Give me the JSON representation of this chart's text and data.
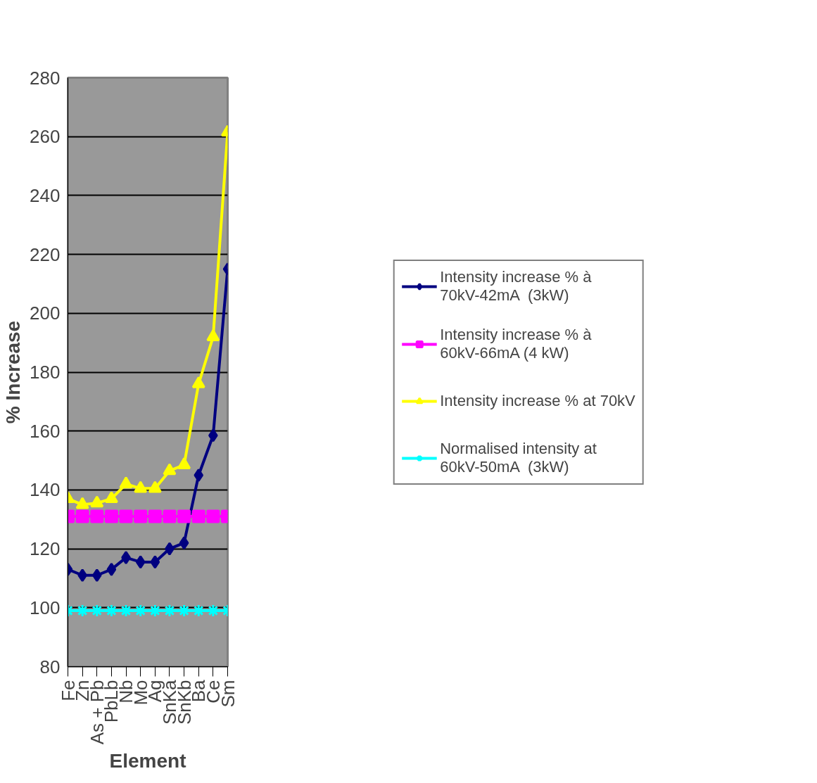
{
  "chart_data": {
    "type": "line",
    "xlabel": "Element",
    "ylabel": "% Increase",
    "categories": [
      "Fe",
      "Zn",
      "As + Pb",
      "PbLb",
      "Nb",
      "Mo",
      "Ag",
      "SnKa",
      "SnKb",
      "Ba",
      "Ce",
      "Sm"
    ],
    "ylim": [
      80,
      280
    ],
    "yticks": [
      80,
      100,
      120,
      140,
      160,
      180,
      200,
      220,
      240,
      260,
      280
    ],
    "grid": "y",
    "legend": "right",
    "series": [
      {
        "name": "Intensity increase % à 70kV-42mA  (3kW)",
        "color": "#000080",
        "marker": "diamond",
        "values": [
          113,
          111,
          111,
          113,
          117,
          115.5,
          115.5,
          120,
          122,
          145,
          158.5,
          215
        ]
      },
      {
        "name": "Intensity increase % à 60kV-66mA (4 kW)",
        "color": "#ff00ff",
        "marker": "square",
        "values": [
          131,
          131,
          131,
          131,
          131,
          131,
          131,
          131,
          131,
          131,
          131,
          131
        ]
      },
      {
        "name": "Intensity increase % at 70kV",
        "color": "#ffff00",
        "marker": "triangle",
        "values": [
          137,
          135,
          135.5,
          137,
          142,
          140.5,
          140.5,
          146.5,
          148.5,
          176,
          192,
          261.5
        ]
      },
      {
        "name": "Normalised intensity at 60kV-50mA  (3kW)",
        "color": "#00ffff",
        "marker": "cross",
        "values": [
          99,
          99,
          99,
          99,
          99,
          99,
          99,
          99,
          99,
          99,
          99,
          99
        ]
      }
    ]
  }
}
